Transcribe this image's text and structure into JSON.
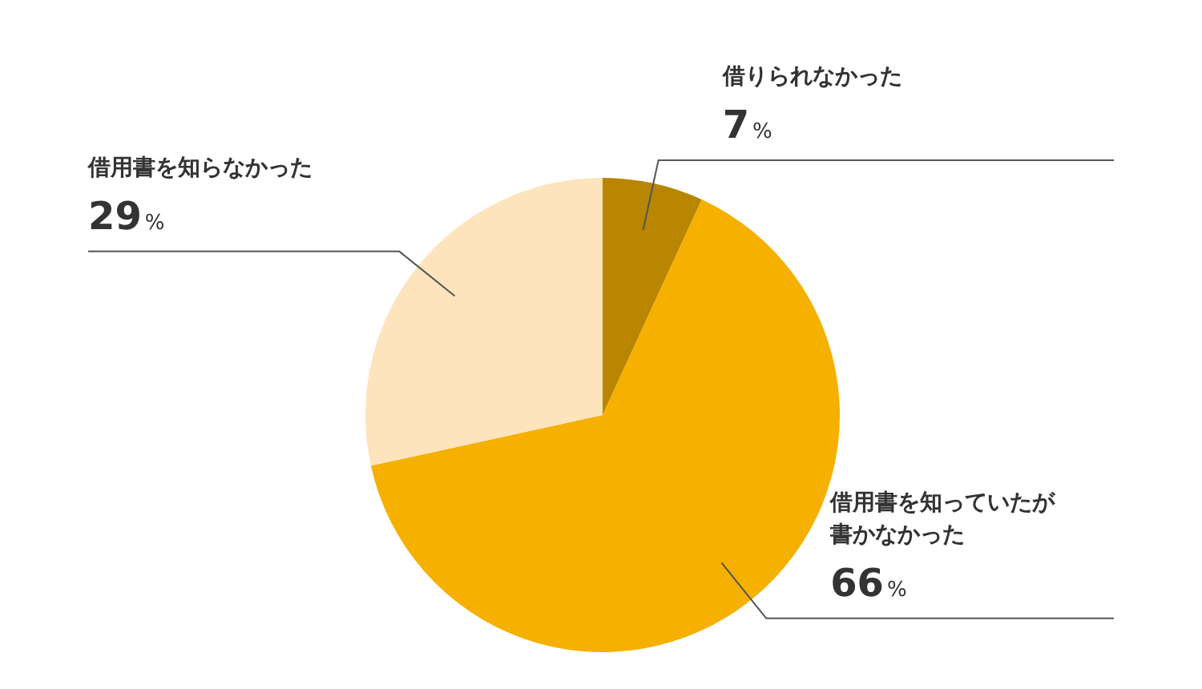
{
  "chart_data": {
    "type": "pie",
    "categories": [
      "借りられなかった",
      "借用書を知っていたが書かなかった",
      "借用書を知らなかった"
    ],
    "values": [
      7,
      66,
      29
    ],
    "colors": [
      "#b88600",
      "#f5b000",
      "#fde4bd"
    ],
    "value_labels": [
      "7%",
      "66%",
      "29%"
    ],
    "legend": false
  }
}
